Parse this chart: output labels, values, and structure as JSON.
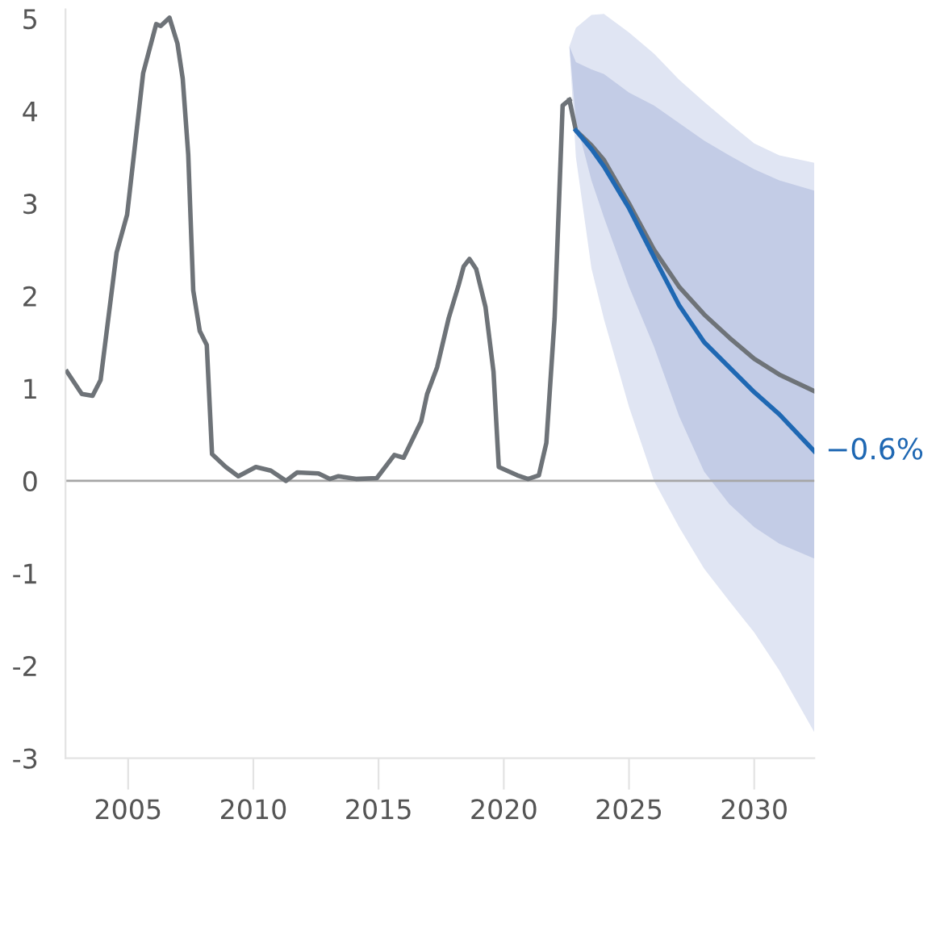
{
  "chart_data": {
    "type": "line",
    "series": [
      {
        "color": "#6e7378",
        "x": [
          2002.56,
          2003.15,
          2003.58,
          2003.9,
          2004.54,
          2004.96,
          2005.6,
          2006.12,
          2006.3,
          2006.65,
          2006.97,
          2007.18,
          2007.4,
          2007.6,
          2007.86,
          2008.14,
          2008.35,
          2008.9,
          2009.4,
          2010.1,
          2010.7,
          2011.3,
          2011.75,
          2012.6,
          2013.05,
          2013.4,
          2014.1,
          2014.93,
          2015.63,
          2016.0,
          2016.7,
          2016.94,
          2017.34,
          2017.8,
          2018.2,
          2018.4,
          2018.63,
          2018.9,
          2019.27,
          2019.59,
          2019.8,
          2020.54,
          2020.97,
          2021.4,
          2021.7,
          2022.03,
          2022.35,
          2022.62
        ],
        "values": [
          1.18,
          0.94,
          0.92,
          1.09,
          2.47,
          2.88,
          4.41,
          4.94,
          4.92,
          5.01,
          4.73,
          4.35,
          3.53,
          2.06,
          1.62,
          1.47,
          0.29,
          0.15,
          0.05,
          0.15,
          0.11,
          0.0,
          0.09,
          0.08,
          0.02,
          0.05,
          0.02,
          0.03,
          0.28,
          0.25,
          0.64,
          0.94,
          1.23,
          1.76,
          2.12,
          2.32,
          2.4,
          2.29,
          1.88,
          1.18,
          0.15,
          0.06,
          0.02,
          0.06,
          0.41,
          1.76,
          4.06,
          4.12
        ]
      },
      {
        "color": "#6e7378",
        "x": [
          2022.62,
          2022.88,
          2023.5,
          2024,
          2025,
          2026,
          2027,
          2028,
          2029,
          2030,
          2031,
          2032.4
        ],
        "values": [
          4.12,
          3.79,
          3.63,
          3.47,
          3.0,
          2.5,
          2.1,
          1.8,
          1.55,
          1.32,
          1.15,
          0.97
        ],
        "lower": [
          4.7,
          3.5,
          2.3,
          1.75,
          0.8,
          0.0,
          -0.5,
          -0.95,
          -1.3,
          -1.64,
          -2.05,
          -2.72
        ],
        "upper": [
          4.7,
          4.9,
          5.04,
          5.05,
          4.85,
          4.62,
          4.34,
          4.1,
          3.87,
          3.65,
          3.52,
          3.44
        ]
      },
      {
        "color": "#1f68b3",
        "x": [
          2022.62,
          2022.88,
          2023.5,
          2024,
          2025,
          2026,
          2027,
          2028,
          2029,
          2030,
          2031,
          2032.4
        ],
        "values": [
          null,
          3.79,
          3.59,
          3.4,
          2.95,
          2.42,
          1.9,
          1.5,
          1.23,
          0.96,
          0.72,
          0.32
        ],
        "lower": [
          4.7,
          3.9,
          3.25,
          2.85,
          2.1,
          1.45,
          0.7,
          0.1,
          -0.25,
          -0.5,
          -0.68,
          -0.84
        ],
        "upper": [
          4.7,
          4.53,
          4.45,
          4.4,
          4.2,
          4.06,
          3.87,
          3.68,
          3.52,
          3.37,
          3.25,
          3.14
        ]
      }
    ],
    "xlim": [
      2002.5,
      2032.4
    ],
    "ylim": [
      -3,
      5.1
    ],
    "xticks": [
      2005,
      2010,
      2015,
      2020,
      2025,
      2030
    ],
    "yticks": [
      -3,
      -2,
      -1,
      0,
      1,
      2,
      3,
      4,
      5
    ],
    "ref_lines": [
      {
        "axis": "y",
        "value": 0,
        "color": "#a6a6a6"
      }
    ],
    "annotations": [
      {
        "text": "−0.6%",
        "x": 2032.4,
        "y": 0.32
      }
    ],
    "grid": false,
    "legend": false,
    "marker": "none",
    "line_style": "solid"
  }
}
